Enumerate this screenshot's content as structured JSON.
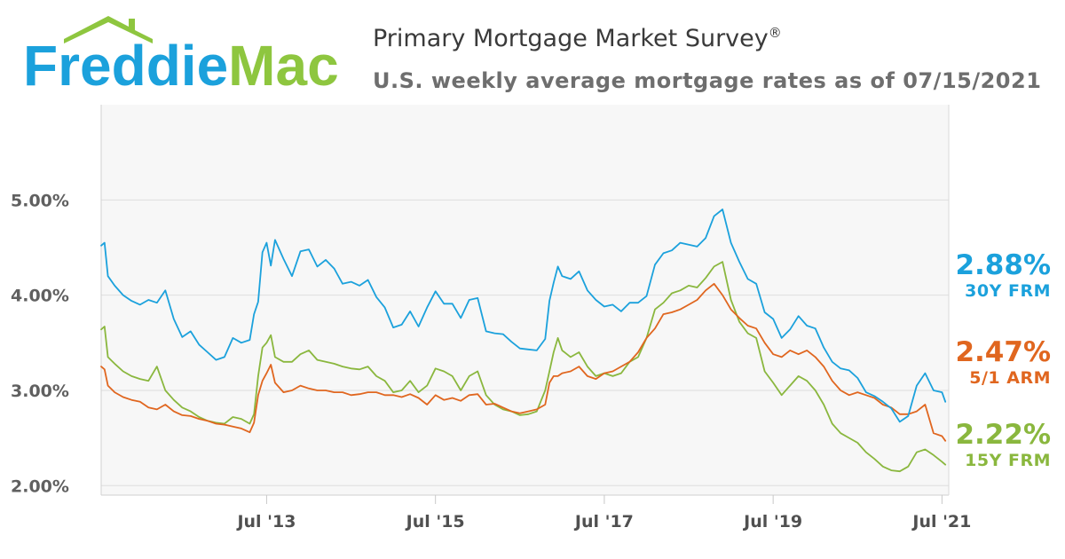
{
  "header": {
    "logo_text": "FreddieMac",
    "logo_colors": {
      "freddie": "#1ba1dc",
      "mac": "#8ec63f",
      "roof": "#8ec63f"
    },
    "title": "Primary Mortgage Market Survey",
    "title_mark": "®",
    "subtitle": "U.S. weekly average mortgage rates as of 07/15/2021"
  },
  "chart_data": {
    "type": "line",
    "title": "Primary Mortgage Market Survey®",
    "subtitle": "U.S. weekly average mortgage rates as of 07/15/2021",
    "ylim": [
      1.9,
      6.0
    ],
    "yticks": [
      2.0,
      3.0,
      4.0,
      5.0
    ],
    "ytick_labels": [
      "2.00%",
      "3.00%",
      "4.00%",
      "5.00%"
    ],
    "xlim": [
      2011.54,
      2021.58
    ],
    "xticks": [
      2013.5,
      2015.5,
      2017.5,
      2019.5,
      2021.5
    ],
    "xtick_labels": [
      "Jul '13",
      "Jul '15",
      "Jul '17",
      "Jul '19",
      "Jul '21"
    ],
    "grid": "horizontal",
    "legend": "right",
    "series": [
      {
        "name": "30Y FRM",
        "latest": "2.88%",
        "color": "#1ba1dc",
        "x": [
          2011.54,
          2011.58,
          2011.62,
          2011.7,
          2011.8,
          2011.9,
          2012.0,
          2012.1,
          2012.2,
          2012.3,
          2012.4,
          2012.5,
          2012.6,
          2012.7,
          2012.8,
          2012.9,
          2013.0,
          2013.1,
          2013.2,
          2013.3,
          2013.35,
          2013.4,
          2013.45,
          2013.5,
          2013.55,
          2013.6,
          2013.7,
          2013.8,
          2013.9,
          2014.0,
          2014.1,
          2014.2,
          2014.3,
          2014.4,
          2014.5,
          2014.6,
          2014.7,
          2014.8,
          2014.9,
          2015.0,
          2015.1,
          2015.2,
          2015.3,
          2015.4,
          2015.5,
          2015.6,
          2015.7,
          2015.8,
          2015.9,
          2016.0,
          2016.1,
          2016.2,
          2016.3,
          2016.4,
          2016.5,
          2016.6,
          2016.7,
          2016.8,
          2016.85,
          2016.9,
          2016.95,
          2017.0,
          2017.1,
          2017.2,
          2017.3,
          2017.4,
          2017.5,
          2017.6,
          2017.7,
          2017.8,
          2017.9,
          2018.0,
          2018.1,
          2018.2,
          2018.3,
          2018.4,
          2018.5,
          2018.6,
          2018.7,
          2018.8,
          2018.9,
          2019.0,
          2019.1,
          2019.2,
          2019.3,
          2019.4,
          2019.5,
          2019.6,
          2019.7,
          2019.8,
          2019.9,
          2020.0,
          2020.1,
          2020.2,
          2020.3,
          2020.4,
          2020.5,
          2020.6,
          2020.7,
          2020.8,
          2020.9,
          2021.0,
          2021.1,
          2021.2,
          2021.3,
          2021.4,
          2021.5,
          2021.54
        ],
        "values": [
          4.52,
          4.55,
          4.2,
          4.1,
          4.0,
          3.94,
          3.9,
          3.95,
          3.92,
          4.05,
          3.75,
          3.56,
          3.62,
          3.48,
          3.4,
          3.32,
          3.35,
          3.55,
          3.5,
          3.53,
          3.8,
          3.93,
          4.45,
          4.55,
          4.31,
          4.58,
          4.38,
          4.2,
          4.46,
          4.48,
          4.3,
          4.37,
          4.28,
          4.12,
          4.14,
          4.1,
          4.16,
          3.98,
          3.87,
          3.66,
          3.69,
          3.83,
          3.67,
          3.87,
          4.04,
          3.91,
          3.91,
          3.76,
          3.95,
          3.97,
          3.62,
          3.6,
          3.59,
          3.51,
          3.44,
          3.43,
          3.42,
          3.54,
          3.94,
          4.13,
          4.3,
          4.2,
          4.17,
          4.25,
          4.05,
          3.95,
          3.88,
          3.9,
          3.83,
          3.92,
          3.92,
          3.99,
          4.32,
          4.44,
          4.47,
          4.55,
          4.53,
          4.51,
          4.6,
          4.83,
          4.9,
          4.55,
          4.35,
          4.17,
          4.12,
          3.82,
          3.75,
          3.55,
          3.64,
          3.78,
          3.68,
          3.65,
          3.45,
          3.3,
          3.23,
          3.21,
          3.13,
          2.98,
          2.94,
          2.88,
          2.81,
          2.67,
          2.73,
          3.05,
          3.18,
          3.0,
          2.98,
          2.88
        ]
      },
      {
        "name": "5/1 ARM",
        "latest": "2.47%",
        "color": "#e0661f",
        "x": [
          2011.54,
          2011.58,
          2011.62,
          2011.7,
          2011.8,
          2011.9,
          2012.0,
          2012.1,
          2012.2,
          2012.3,
          2012.4,
          2012.5,
          2012.6,
          2012.7,
          2012.8,
          2012.9,
          2013.0,
          2013.1,
          2013.2,
          2013.3,
          2013.35,
          2013.4,
          2013.45,
          2013.5,
          2013.55,
          2013.6,
          2013.7,
          2013.8,
          2013.9,
          2014.0,
          2014.1,
          2014.2,
          2014.3,
          2014.4,
          2014.5,
          2014.6,
          2014.7,
          2014.8,
          2014.9,
          2015.0,
          2015.1,
          2015.2,
          2015.3,
          2015.4,
          2015.5,
          2015.6,
          2015.7,
          2015.8,
          2015.9,
          2016.0,
          2016.1,
          2016.2,
          2016.3,
          2016.4,
          2016.5,
          2016.6,
          2016.7,
          2016.8,
          2016.85,
          2016.9,
          2016.95,
          2017.0,
          2017.1,
          2017.2,
          2017.3,
          2017.4,
          2017.5,
          2017.6,
          2017.7,
          2017.8,
          2017.9,
          2018.0,
          2018.1,
          2018.2,
          2018.3,
          2018.4,
          2018.5,
          2018.6,
          2018.7,
          2018.8,
          2018.9,
          2019.0,
          2019.1,
          2019.2,
          2019.3,
          2019.4,
          2019.5,
          2019.6,
          2019.7,
          2019.8,
          2019.9,
          2020.0,
          2020.1,
          2020.2,
          2020.3,
          2020.4,
          2020.5,
          2020.6,
          2020.7,
          2020.8,
          2020.9,
          2021.0,
          2021.1,
          2021.2,
          2021.3,
          2021.4,
          2021.5,
          2021.54
        ],
        "values": [
          3.25,
          3.22,
          3.05,
          2.98,
          2.93,
          2.9,
          2.88,
          2.82,
          2.8,
          2.85,
          2.78,
          2.74,
          2.73,
          2.7,
          2.68,
          2.65,
          2.64,
          2.62,
          2.6,
          2.56,
          2.66,
          2.95,
          3.1,
          3.18,
          3.27,
          3.08,
          2.98,
          3.0,
          3.05,
          3.02,
          3.0,
          3.0,
          2.98,
          2.98,
          2.95,
          2.96,
          2.98,
          2.98,
          2.95,
          2.95,
          2.93,
          2.96,
          2.92,
          2.85,
          2.95,
          2.9,
          2.92,
          2.89,
          2.95,
          2.96,
          2.85,
          2.86,
          2.82,
          2.78,
          2.76,
          2.78,
          2.8,
          2.85,
          3.08,
          3.15,
          3.15,
          3.18,
          3.2,
          3.25,
          3.15,
          3.12,
          3.18,
          3.2,
          3.25,
          3.3,
          3.4,
          3.55,
          3.65,
          3.8,
          3.82,
          3.85,
          3.9,
          3.95,
          4.05,
          4.12,
          4.0,
          3.85,
          3.76,
          3.68,
          3.65,
          3.5,
          3.38,
          3.35,
          3.42,
          3.38,
          3.42,
          3.35,
          3.25,
          3.1,
          3.0,
          2.95,
          2.98,
          2.95,
          2.92,
          2.85,
          2.82,
          2.75,
          2.75,
          2.78,
          2.85,
          2.55,
          2.52,
          2.47
        ]
      },
      {
        "name": "15Y FRM",
        "latest": "2.22%",
        "color": "#8ab73e",
        "x": [
          2011.54,
          2011.58,
          2011.62,
          2011.7,
          2011.8,
          2011.9,
          2012.0,
          2012.1,
          2012.2,
          2012.3,
          2012.4,
          2012.5,
          2012.6,
          2012.7,
          2012.8,
          2012.9,
          2013.0,
          2013.1,
          2013.2,
          2013.3,
          2013.35,
          2013.4,
          2013.45,
          2013.5,
          2013.55,
          2013.6,
          2013.7,
          2013.8,
          2013.9,
          2014.0,
          2014.1,
          2014.2,
          2014.3,
          2014.4,
          2014.5,
          2014.6,
          2014.7,
          2014.8,
          2014.9,
          2015.0,
          2015.1,
          2015.2,
          2015.3,
          2015.4,
          2015.5,
          2015.6,
          2015.7,
          2015.8,
          2015.9,
          2016.0,
          2016.1,
          2016.2,
          2016.3,
          2016.4,
          2016.5,
          2016.6,
          2016.7,
          2016.8,
          2016.85,
          2016.9,
          2016.95,
          2017.0,
          2017.1,
          2017.2,
          2017.3,
          2017.4,
          2017.5,
          2017.6,
          2017.7,
          2017.8,
          2017.9,
          2018.0,
          2018.1,
          2018.2,
          2018.3,
          2018.4,
          2018.5,
          2018.6,
          2018.7,
          2018.8,
          2018.9,
          2019.0,
          2019.1,
          2019.2,
          2019.3,
          2019.4,
          2019.5,
          2019.6,
          2019.7,
          2019.8,
          2019.9,
          2020.0,
          2020.1,
          2020.2,
          2020.3,
          2020.4,
          2020.5,
          2020.6,
          2020.7,
          2020.8,
          2020.9,
          2021.0,
          2021.1,
          2021.2,
          2021.3,
          2021.4,
          2021.5,
          2021.54
        ],
        "values": [
          3.64,
          3.67,
          3.35,
          3.28,
          3.2,
          3.15,
          3.12,
          3.1,
          3.25,
          3.0,
          2.9,
          2.82,
          2.78,
          2.72,
          2.68,
          2.66,
          2.65,
          2.72,
          2.7,
          2.65,
          2.75,
          3.15,
          3.45,
          3.5,
          3.58,
          3.35,
          3.3,
          3.3,
          3.38,
          3.42,
          3.32,
          3.3,
          3.28,
          3.25,
          3.23,
          3.22,
          3.25,
          3.15,
          3.1,
          2.98,
          3.0,
          3.1,
          2.98,
          3.05,
          3.23,
          3.2,
          3.15,
          3.0,
          3.15,
          3.2,
          2.95,
          2.85,
          2.8,
          2.78,
          2.74,
          2.75,
          2.78,
          3.0,
          3.2,
          3.4,
          3.55,
          3.42,
          3.35,
          3.4,
          3.25,
          3.15,
          3.18,
          3.15,
          3.18,
          3.3,
          3.35,
          3.55,
          3.85,
          3.92,
          4.02,
          4.05,
          4.1,
          4.08,
          4.18,
          4.3,
          4.35,
          3.95,
          3.72,
          3.6,
          3.55,
          3.2,
          3.08,
          2.95,
          3.05,
          3.15,
          3.1,
          3.0,
          2.85,
          2.65,
          2.55,
          2.5,
          2.45,
          2.35,
          2.28,
          2.2,
          2.16,
          2.15,
          2.2,
          2.35,
          2.38,
          2.32,
          2.25,
          2.22
        ]
      }
    ]
  }
}
